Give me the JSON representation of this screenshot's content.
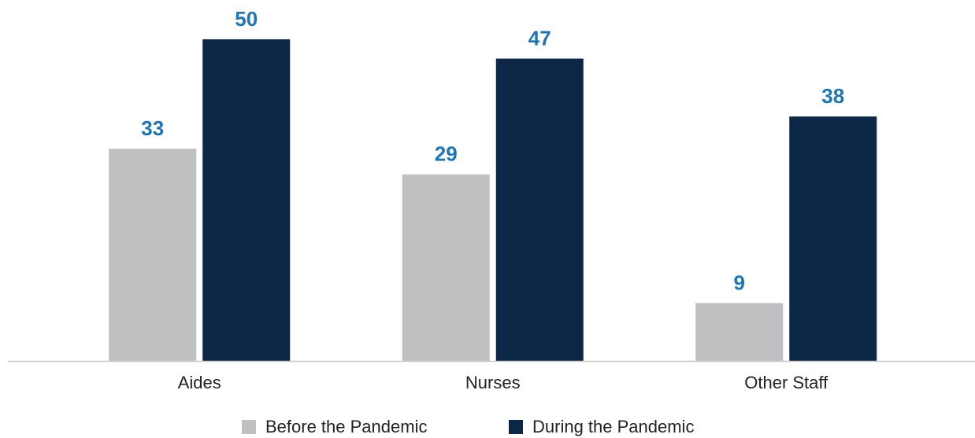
{
  "chart_data": {
    "type": "bar",
    "categories": [
      "Aides",
      "Nurses",
      "Other Staff"
    ],
    "series": [
      {
        "name": "Before the Pandemic",
        "color": "#bfc0c2",
        "values": [
          33,
          29,
          9
        ]
      },
      {
        "name": "During the Pandemic",
        "color": "#0d2846",
        "values": [
          50,
          47,
          38
        ]
      }
    ],
    "ylim": [
      0,
      50
    ],
    "value_label_color": "#1b75b9"
  }
}
